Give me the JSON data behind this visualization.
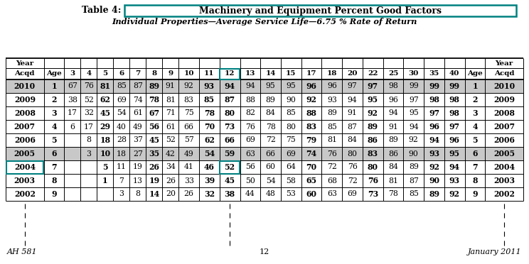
{
  "title_prefix": "Table 4: ",
  "title_main": "Machinery and Equipment Percent Good Factors",
  "subtitle": "Individual Properties—Average Service Life—6.75 % Rate of Return",
  "header_row1": [
    "Year",
    "",
    "",
    "",
    "",
    "",
    "",
    "",
    "",
    "",
    "",
    "",
    "",
    "",
    "",
    "",
    "",
    "",
    "",
    "",
    "",
    "",
    "",
    "",
    "Year"
  ],
  "header_row2": [
    "Acqd",
    "Age",
    "3",
    "4",
    "5",
    "6",
    "7",
    "8",
    "9",
    "10",
    "11",
    "12",
    "13",
    "14",
    "15",
    "17",
    "18",
    "20",
    "22",
    "25",
    "30",
    "35",
    "40",
    "Age",
    "Acqd"
  ],
  "rows": [
    [
      "2010",
      "1",
      "67",
      "76",
      "81",
      "85",
      "87",
      "89",
      "91",
      "92",
      "93",
      "94",
      "94",
      "95",
      "95",
      "96",
      "96",
      "97",
      "97",
      "98",
      "99",
      "99",
      "99",
      "1",
      "2010"
    ],
    [
      "2009",
      "2",
      "38",
      "52",
      "62",
      "69",
      "74",
      "78",
      "81",
      "83",
      "85",
      "87",
      "88",
      "89",
      "90",
      "92",
      "93",
      "94",
      "95",
      "96",
      "97",
      "98",
      "98",
      "2",
      "2009"
    ],
    [
      "2008",
      "3",
      "17",
      "32",
      "45",
      "54",
      "61",
      "67",
      "71",
      "75",
      "78",
      "80",
      "82",
      "84",
      "85",
      "88",
      "89",
      "91",
      "92",
      "94",
      "95",
      "97",
      "98",
      "3",
      "2008"
    ],
    [
      "2007",
      "4",
      "6",
      "17",
      "29",
      "40",
      "49",
      "56",
      "61",
      "66",
      "70",
      "73",
      "76",
      "78",
      "80",
      "83",
      "85",
      "87",
      "89",
      "91",
      "94",
      "96",
      "97",
      "4",
      "2007"
    ],
    [
      "2006",
      "5",
      "",
      "8",
      "18",
      "28",
      "37",
      "45",
      "52",
      "57",
      "62",
      "66",
      "69",
      "72",
      "75",
      "79",
      "81",
      "84",
      "86",
      "89",
      "92",
      "94",
      "96",
      "5",
      "2006"
    ],
    [
      "2005",
      "6",
      "",
      "3",
      "10",
      "18",
      "27",
      "35",
      "42",
      "49",
      "54",
      "59",
      "63",
      "66",
      "69",
      "74",
      "76",
      "80",
      "83",
      "86",
      "90",
      "93",
      "95",
      "6",
      "2005"
    ],
    [
      "2004",
      "7",
      "",
      "",
      "5",
      "11",
      "19",
      "26",
      "34",
      "41",
      "46",
      "52",
      "56",
      "60",
      "64",
      "70",
      "72",
      "76",
      "80",
      "84",
      "89",
      "92",
      "94",
      "7",
      "2004"
    ],
    [
      "2003",
      "8",
      "",
      "",
      "1",
      "7",
      "13",
      "19",
      "26",
      "33",
      "39",
      "45",
      "50",
      "54",
      "58",
      "65",
      "68",
      "72",
      "76",
      "81",
      "87",
      "90",
      "93",
      "8",
      "2003"
    ],
    [
      "2002",
      "9",
      "",
      "",
      "",
      "3",
      "8",
      "14",
      "20",
      "26",
      "32",
      "38",
      "44",
      "48",
      "53",
      "60",
      "63",
      "69",
      "73",
      "78",
      "85",
      "89",
      "92",
      "9",
      "2002"
    ]
  ],
  "highlighted_row": 6,
  "highlighted_col": 11,
  "shaded_row": 0,
  "shaded_row2": 5,
  "footer_left": "AH 581",
  "footer_center": "12",
  "footer_right": "January 2011",
  "bg_color": "#ffffff",
  "shaded_row_color": "#c8c8c8",
  "highlight_box_color": "#008080",
  "title_box_color": "#008080",
  "col_widths_rel": [
    2.8,
    1.5,
    1.2,
    1.2,
    1.2,
    1.2,
    1.2,
    1.2,
    1.2,
    1.5,
    1.5,
    1.5,
    1.5,
    1.5,
    1.5,
    1.5,
    1.5,
    1.5,
    1.5,
    1.5,
    1.5,
    1.5,
    1.5,
    1.5,
    2.8
  ]
}
